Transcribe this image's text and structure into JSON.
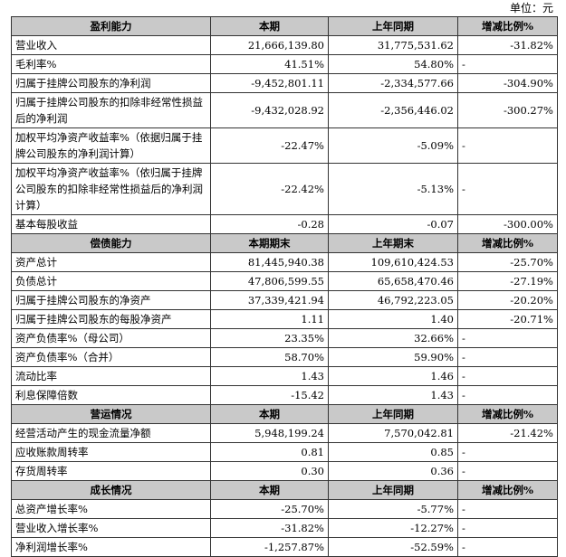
{
  "unit_label": "单位：元",
  "sections": [
    {
      "key": "profit",
      "headers": [
        "盈利能力",
        "本期",
        "上年同期",
        "增减比例%"
      ],
      "rows": [
        {
          "label": "营业收入",
          "cur": "21,666,139.80",
          "prev": "31,775,531.62",
          "chg": "-31.82%"
        },
        {
          "label": "毛利率%",
          "cur": "41.51%",
          "prev": "54.80%",
          "chg": "-"
        },
        {
          "label": "归属于挂牌公司股东的净利润",
          "cur": "-9,452,801.11",
          "prev": "-2,334,577.66",
          "chg": "-304.90%"
        },
        {
          "label": "归属于挂牌公司股东的扣除非经常性损益后的净利润",
          "cur": "-9,432,028.92",
          "prev": "-2,356,446.02",
          "chg": "-300.27%"
        },
        {
          "label": "加权平均净资产收益率%（依据归属于挂牌公司股东的净利润计算）",
          "cur": "-22.47%",
          "prev": "-5.09%",
          "chg": "-"
        },
        {
          "label": "加权平均净资产收益率%（依归属于挂牌公司股东的扣除非经常性损益后的净利润计算）",
          "cur": "-22.42%",
          "prev": "-5.13%",
          "chg": "-"
        },
        {
          "label": "基本每股收益",
          "cur": "-0.28",
          "prev": "-0.07",
          "chg": "-300.00%"
        }
      ]
    },
    {
      "key": "solvency",
      "headers": [
        "偿债能力",
        "本期期末",
        "上年期末",
        "增减比例%"
      ],
      "rows": [
        {
          "label": "资产总计",
          "cur": "81,445,940.38",
          "prev": "109,610,424.53",
          "chg": "-25.70%"
        },
        {
          "label": "负债总计",
          "cur": "47,806,599.55",
          "prev": "65,658,470.46",
          "chg": "-27.19%"
        },
        {
          "label": "归属于挂牌公司股东的净资产",
          "cur": "37,339,421.94",
          "prev": "46,792,223.05",
          "chg": "-20.20%"
        },
        {
          "label": "归属于挂牌公司股东的每股净资产",
          "cur": "1.11",
          "prev": "1.40",
          "chg": "-20.71%"
        },
        {
          "label": "资产负债率%（母公司）",
          "cur": "23.35%",
          "prev": "32.66%",
          "chg": "-"
        },
        {
          "label": "资产负债率%（合并）",
          "cur": "58.70%",
          "prev": "59.90%",
          "chg": "-"
        },
        {
          "label": "流动比率",
          "cur": "1.43",
          "prev": "1.46",
          "chg": "-"
        },
        {
          "label": "利息保障倍数",
          "cur": "-15.42",
          "prev": "1.43",
          "chg": "-"
        }
      ]
    },
    {
      "key": "operation",
      "headers": [
        "营运情况",
        "本期",
        "上年同期",
        "增减比例%"
      ],
      "rows": [
        {
          "label": "经营活动产生的现金流量净额",
          "cur": "5,948,199.24",
          "prev": "7,570,042.81",
          "chg": "-21.42%"
        },
        {
          "label": "应收账款周转率",
          "cur": "0.81",
          "prev": "0.85",
          "chg": "-"
        },
        {
          "label": "存货周转率",
          "cur": "0.30",
          "prev": "0.36",
          "chg": "-"
        }
      ]
    },
    {
      "key": "growth",
      "headers": [
        "成长情况",
        "本期",
        "上年同期",
        "增减比例%"
      ],
      "rows": [
        {
          "label": "总资产增长率%",
          "cur": "-25.70%",
          "prev": "-5.77%",
          "chg": "-"
        },
        {
          "label": "营业收入增长率%",
          "cur": "-31.82%",
          "prev": "-12.27%",
          "chg": "-"
        },
        {
          "label": "净利润增长率%",
          "cur": "-1,257.87%",
          "prev": "-52.59%",
          "chg": "-"
        }
      ]
    }
  ]
}
